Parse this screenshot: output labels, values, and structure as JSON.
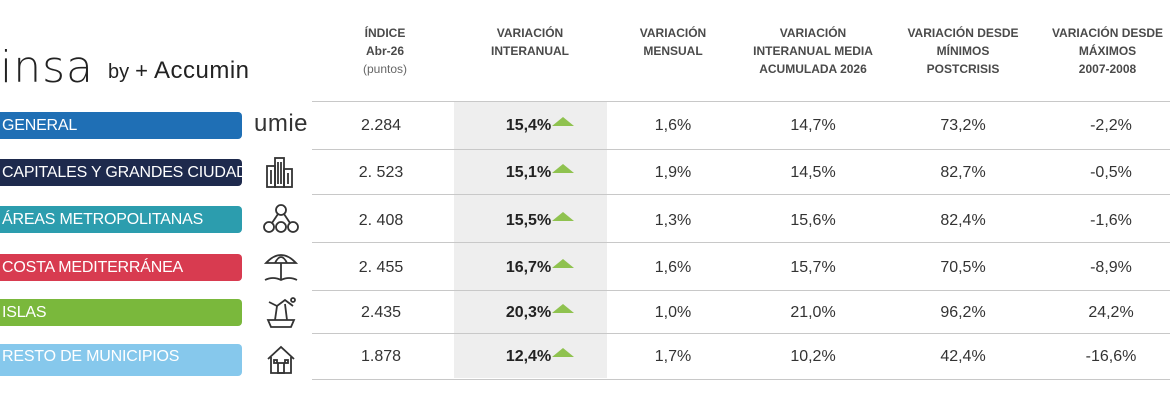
{
  "logo": {
    "brand": "insa",
    "by": "by",
    "partner_mark": "+",
    "partner": "Accumin",
    "umie": "umie"
  },
  "colors": {
    "general": "#1f6fb5",
    "capitales": "#1e2a4d",
    "areas": "#2c9dae",
    "costa": "#d83b50",
    "islas": "#7ab83c",
    "resto": "#86c8ec",
    "arrow": "#8fc24f"
  },
  "headers": [
    {
      "lines": [
        "ÍNDICE",
        "Abr-26"
      ],
      "sub": "(puntos)"
    },
    {
      "lines": [
        "VARIACIÓN",
        "INTERANUAL"
      ]
    },
    {
      "lines": [
        "VARIACIÓN",
        "MENSUAL"
      ]
    },
    {
      "lines": [
        "VARIACIÓN",
        "INTERANUAL MEDIA",
        "ACUMULADA 2026"
      ]
    },
    {
      "lines": [
        "VARIACIÓN DESDE",
        "MÍNIMOS",
        "POSTCRISIS"
      ]
    },
    {
      "lines": [
        "VARIACIÓN DESDE",
        "MÁXIMOS",
        "2007-2008"
      ]
    }
  ],
  "rows": [
    {
      "label": "GENERAL",
      "icon": "umie-logo",
      "indice": "2.284",
      "interanual": "15,4%",
      "mensual": "1,6%",
      "media": "14,7%",
      "minimos": "73,2%",
      "maximos": "-2,2%"
    },
    {
      "label": "CAPITALES Y GRANDES CIUDADES",
      "icon": "buildings-icon",
      "indice": "2. 523",
      "interanual": "15,1%",
      "mensual": "1,9%",
      "media": "14,5%",
      "minimos": "82,7%",
      "maximos": "-0,5%"
    },
    {
      "label": "ÁREAS METROPOLITANAS",
      "icon": "network-icon",
      "indice": "2. 408",
      "interanual": "15,5%",
      "mensual": "1,3%",
      "media": "15,6%",
      "minimos": "82,4%",
      "maximos": "-1,6%"
    },
    {
      "label": "COSTA MEDITERRÁNEA",
      "icon": "beach-umbrella-icon",
      "indice": "2. 455",
      "interanual": "16,7%",
      "mensual": "1,6%",
      "media": "15,7%",
      "minimos": "70,5%",
      "maximos": "-8,9%"
    },
    {
      "label": "ISLAS",
      "icon": "island-icon",
      "indice": "2.435",
      "interanual": "20,3%",
      "mensual": "1,0%",
      "media": "21,0%",
      "minimos": "96,2%",
      "maximos": "24,2%"
    },
    {
      "label": "RESTO DE MUNICIPIOS",
      "icon": "house-icon",
      "indice": "1.878",
      "interanual": "12,4%",
      "mensual": "1,7%",
      "media": "10,2%",
      "minimos": "42,4%",
      "maximos": "-16,6%"
    }
  ]
}
